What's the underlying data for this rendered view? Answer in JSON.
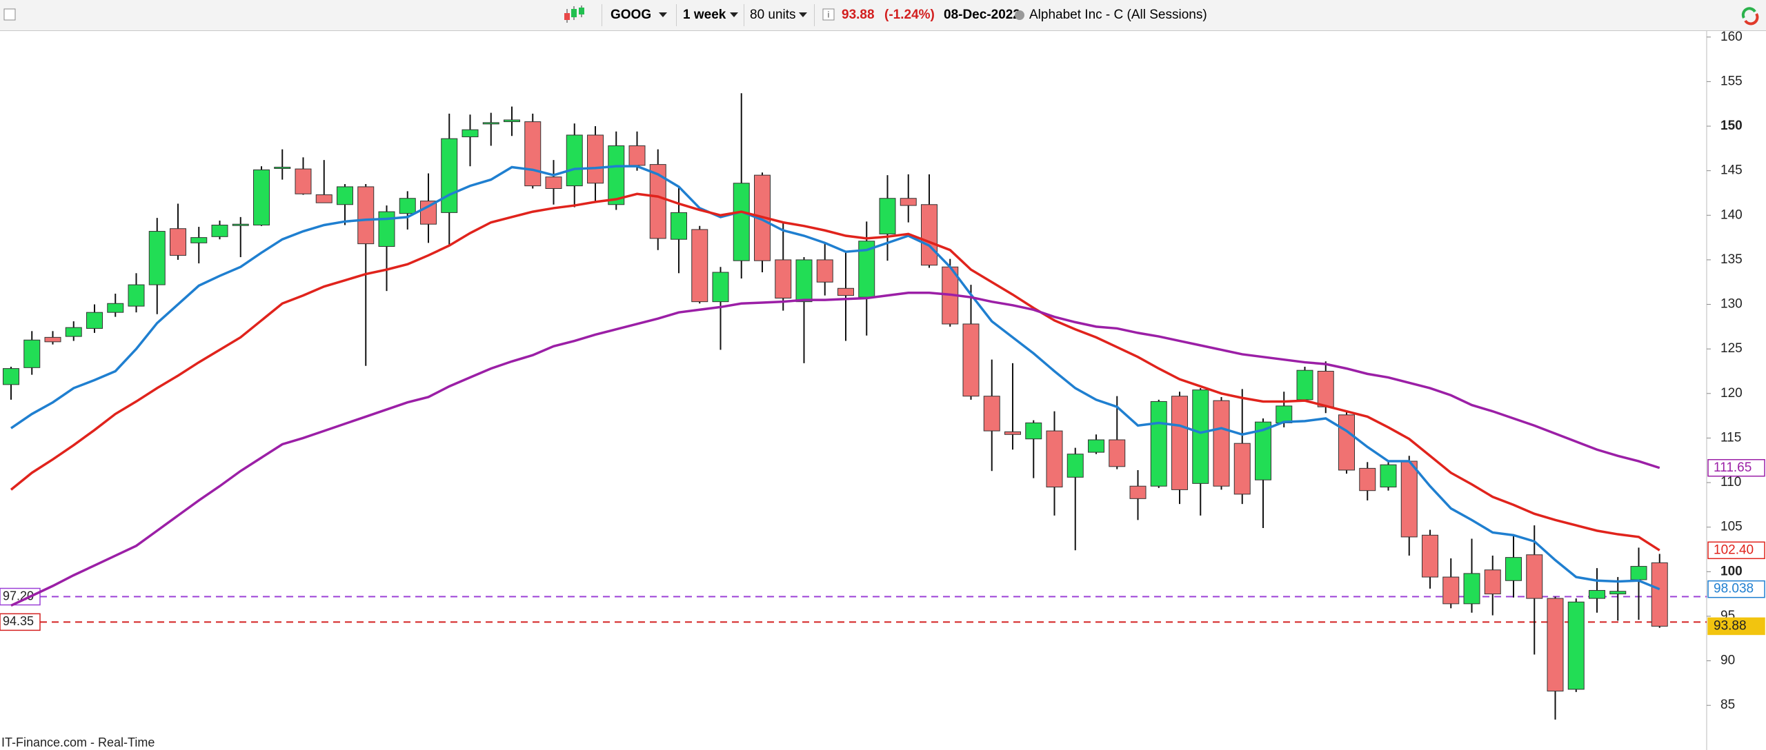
{
  "toolbar": {
    "symbol": "GOOG",
    "interval": "1 week",
    "units": "80 units",
    "last": "93.88",
    "change": "(-1.24%)",
    "date": "08-Dec-2022",
    "name": "Alphabet Inc - C (All Sessions)"
  },
  "footer": "IT-Finance.com - Real-Time",
  "chart_data": {
    "type": "candlestick",
    "up_color": "#22dd55",
    "down_color": "#f07272",
    "open": [
      121,
      122.9,
      126.3,
      126.4,
      127.3,
      129.1,
      129.8,
      132.2,
      138.5,
      136.9,
      137.6,
      138.9,
      138.9,
      145.3,
      145.2,
      142.3,
      141.2,
      143.2,
      136.5,
      140.2,
      141.6,
      140.3,
      148.8,
      150.3,
      150.5,
      150.5,
      144.3,
      143.3,
      149.0,
      141.2,
      147.8,
      145.7,
      137.3,
      138.4,
      130.3,
      134.9,
      144.5,
      135.0,
      130.3,
      135.0,
      131.8,
      130.8,
      137.9,
      141.9,
      141.2,
      134.2,
      127.8,
      119.7,
      115.7,
      114.9,
      115.8,
      110.6,
      113.4,
      114.8,
      109.6,
      109.6,
      119.7,
      109.9,
      119.2,
      114.4,
      110.3,
      116.7,
      119.3,
      122.5,
      117.6,
      111.6,
      109.5,
      112.4,
      104.1,
      99.4,
      96.4,
      100.2,
      99.0,
      101.9,
      97.0,
      86.8,
      97.0,
      97.5,
      99.1,
      101.0
    ],
    "high": [
      123,
      127,
      127,
      128.1,
      130,
      131.2,
      133.5,
      139.7,
      141.3,
      138.7,
      139.4,
      139.8,
      145.5,
      147.4,
      146.5,
      146.2,
      143.5,
      143.5,
      141.1,
      142.7,
      144.7,
      151.4,
      151.3,
      151.5,
      152.2,
      151.4,
      146.2,
      150.3,
      150.0,
      149.4,
      149.4,
      147.4,
      143.1,
      138.8,
      134.2,
      153.7,
      144.8,
      139.3,
      135.3,
      137.0,
      135.9,
      139.3,
      144.5,
      144.6,
      144.6,
      135.1,
      132.2,
      123.8,
      123.4,
      117.0,
      118.0,
      113.9,
      115.4,
      119.7,
      111.4,
      119.3,
      120.2,
      120.6,
      119.6,
      120.5,
      117.2,
      120.2,
      123.0,
      123.6,
      118.0,
      112.3,
      112.5,
      113.0,
      104.7,
      101.5,
      103.7,
      101.8,
      104.1,
      105.2,
      97.2,
      97.0,
      100.4,
      99.4,
      102.7,
      102.0
    ],
    "low": [
      119.3,
      122.1,
      125.5,
      125.9,
      126.8,
      128.6,
      129.1,
      128.9,
      135,
      134.6,
      137.3,
      135.3,
      138.8,
      144.0,
      142.3,
      141.4,
      138.9,
      123.1,
      131.5,
      138.4,
      136.9,
      136.5,
      145.5,
      147.8,
      148.9,
      143.0,
      141.2,
      140.9,
      141.4,
      140.6,
      145.0,
      136.1,
      133.5,
      130.1,
      124.9,
      132.9,
      133.6,
      129.3,
      123.4,
      131.0,
      125.9,
      126.5,
      134.9,
      139.2,
      134.1,
      127.5,
      119.3,
      111.3,
      113.7,
      110.5,
      106.3,
      102.4,
      113.2,
      111.5,
      105.8,
      109.4,
      107.6,
      106.3,
      109.2,
      107.6,
      104.9,
      116.2,
      119.1,
      117.8,
      111.0,
      108.0,
      109.1,
      101.8,
      98.1,
      95.9,
      95.4,
      95.1,
      97.1,
      90.7,
      83.4,
      86.5,
      95.4,
      94.5,
      94.6,
      93.7
    ],
    "close": [
      122.8,
      126.0,
      125.8,
      127.4,
      129.1,
      130.1,
      132.2,
      138.2,
      135.5,
      137.5,
      138.9,
      139.0,
      145.1,
      145.4,
      142.4,
      141.4,
      143.2,
      136.8,
      140.4,
      141.9,
      139.0,
      148.6,
      149.6,
      150.4,
      150.7,
      143.3,
      143.0,
      149.0,
      143.6,
      147.8,
      145.6,
      137.4,
      140.3,
      130.3,
      133.6,
      143.6,
      134.9,
      130.7,
      135.0,
      132.5,
      131.0,
      137.1,
      141.9,
      141.1,
      134.4,
      127.8,
      119.7,
      115.8,
      115.4,
      116.7,
      109.5,
      113.2,
      114.8,
      111.8,
      108.2,
      119.1,
      109.2,
      120.4,
      109.6,
      108.7,
      116.8,
      118.6,
      122.6,
      118.5,
      111.4,
      109.1,
      112.0,
      103.9,
      99.4,
      96.4,
      99.8,
      97.5,
      101.6,
      97.0,
      86.6,
      96.6,
      97.9,
      97.8,
      100.6,
      93.88
    ],
    "overlays": [
      {
        "color": "#1f7fd0",
        "values": [
          116.1,
          117.7,
          119.0,
          120.6,
          121.5,
          122.5,
          125.0,
          127.9,
          130.0,
          132.1,
          133.2,
          134.2,
          135.8,
          137.3,
          138.2,
          138.9,
          139.3,
          139.5,
          139.6,
          139.8,
          141.0,
          142.3,
          143.3,
          144.0,
          145.4,
          145.1,
          144.5,
          145.2,
          145.3,
          145.5,
          145.5,
          144.6,
          143.2,
          140.8,
          139.8,
          140.4,
          139.5,
          138.3,
          137.7,
          136.9,
          135.9,
          136.1,
          136.9,
          137.7,
          136.6,
          134.2,
          131.1,
          128.1,
          126.3,
          124.5,
          122.5,
          120.6,
          119.3,
          118.5,
          116.4,
          116.7,
          116.4,
          115.6,
          116.1,
          115.4,
          115.9,
          116.8,
          116.9,
          117.2,
          115.8,
          114.0,
          112.4,
          112.4,
          109.6,
          107.1,
          105.8,
          104.4,
          104.1,
          103.4,
          101.3,
          99.4,
          99.0,
          98.9,
          99.0,
          98.038
        ]
      },
      {
        "color": "#e0231c",
        "values": [
          109.2,
          111.1,
          112.6,
          114.2,
          115.9,
          117.7,
          119.1,
          120.6,
          122.0,
          123.5,
          124.9,
          126.3,
          128.2,
          130.1,
          131.0,
          132.0,
          132.7,
          133.4,
          133.9,
          134.5,
          135.5,
          136.6,
          138.0,
          139.2,
          139.8,
          140.4,
          140.8,
          141.1,
          141.5,
          141.8,
          142.4,
          142.1,
          141.3,
          140.6,
          140.0,
          140.4,
          139.8,
          139.2,
          138.8,
          138.3,
          137.7,
          137.4,
          137.6,
          137.9,
          137.0,
          136.1,
          133.9,
          132.5,
          131.1,
          129.6,
          128.2,
          127.2,
          126.3,
          125.2,
          124.1,
          122.8,
          121.6,
          120.8,
          120.0,
          119.5,
          119.1,
          119.1,
          119.2,
          118.6,
          118.0,
          117.4,
          116.2,
          114.9,
          113.0,
          111.1,
          109.8,
          108.4,
          107.5,
          106.5,
          105.8,
          105.2,
          104.6,
          104.2,
          103.9,
          102.4
        ]
      },
      {
        "color": "#9b1fa6",
        "values": [
          96.2,
          97.3,
          98.4,
          99.6,
          100.7,
          101.8,
          102.9,
          104.6,
          106.3,
          108.0,
          109.6,
          111.3,
          112.8,
          114.3,
          115.0,
          115.8,
          116.6,
          117.4,
          118.2,
          119.0,
          119.6,
          120.8,
          121.8,
          122.8,
          123.6,
          124.3,
          125.3,
          125.9,
          126.6,
          127.2,
          127.8,
          128.4,
          129.1,
          129.4,
          129.7,
          130.1,
          130.2,
          130.3,
          130.5,
          130.5,
          130.6,
          130.7,
          131.0,
          131.3,
          131.3,
          131.1,
          130.8,
          130.3,
          129.9,
          129.4,
          128.6,
          128.0,
          127.5,
          127.3,
          126.8,
          126.4,
          125.9,
          125.4,
          124.9,
          124.4,
          124.1,
          123.8,
          123.5,
          123.3,
          122.8,
          122.2,
          121.8,
          121.2,
          120.6,
          119.8,
          118.7,
          118.0,
          117.2,
          116.4,
          115.5,
          114.6,
          113.7,
          113.0,
          112.4,
          111.65
        ]
      }
    ],
    "tags": [
      {
        "value": 111.65,
        "label": "111.65",
        "color": "#9b1fa6"
      },
      {
        "value": 102.4,
        "label": "102.40",
        "color": "#e0231c"
      },
      {
        "value": 98.038,
        "label": "98.038",
        "color": "#1f7fd0"
      },
      {
        "value": 93.88,
        "label": "93.88",
        "color": "#f2c40f"
      }
    ],
    "levels": [
      {
        "value": 97.2,
        "label": "97.20",
        "color": "#9b3fd6"
      },
      {
        "value": 94.35,
        "label": "94.35",
        "color": "#d42020"
      }
    ],
    "ylim": [
      82,
      160.6
    ],
    "yticks": [
      85,
      90,
      95,
      100,
      105,
      110,
      115,
      120,
      125,
      130,
      135,
      140,
      145,
      150,
      155,
      160
    ]
  }
}
